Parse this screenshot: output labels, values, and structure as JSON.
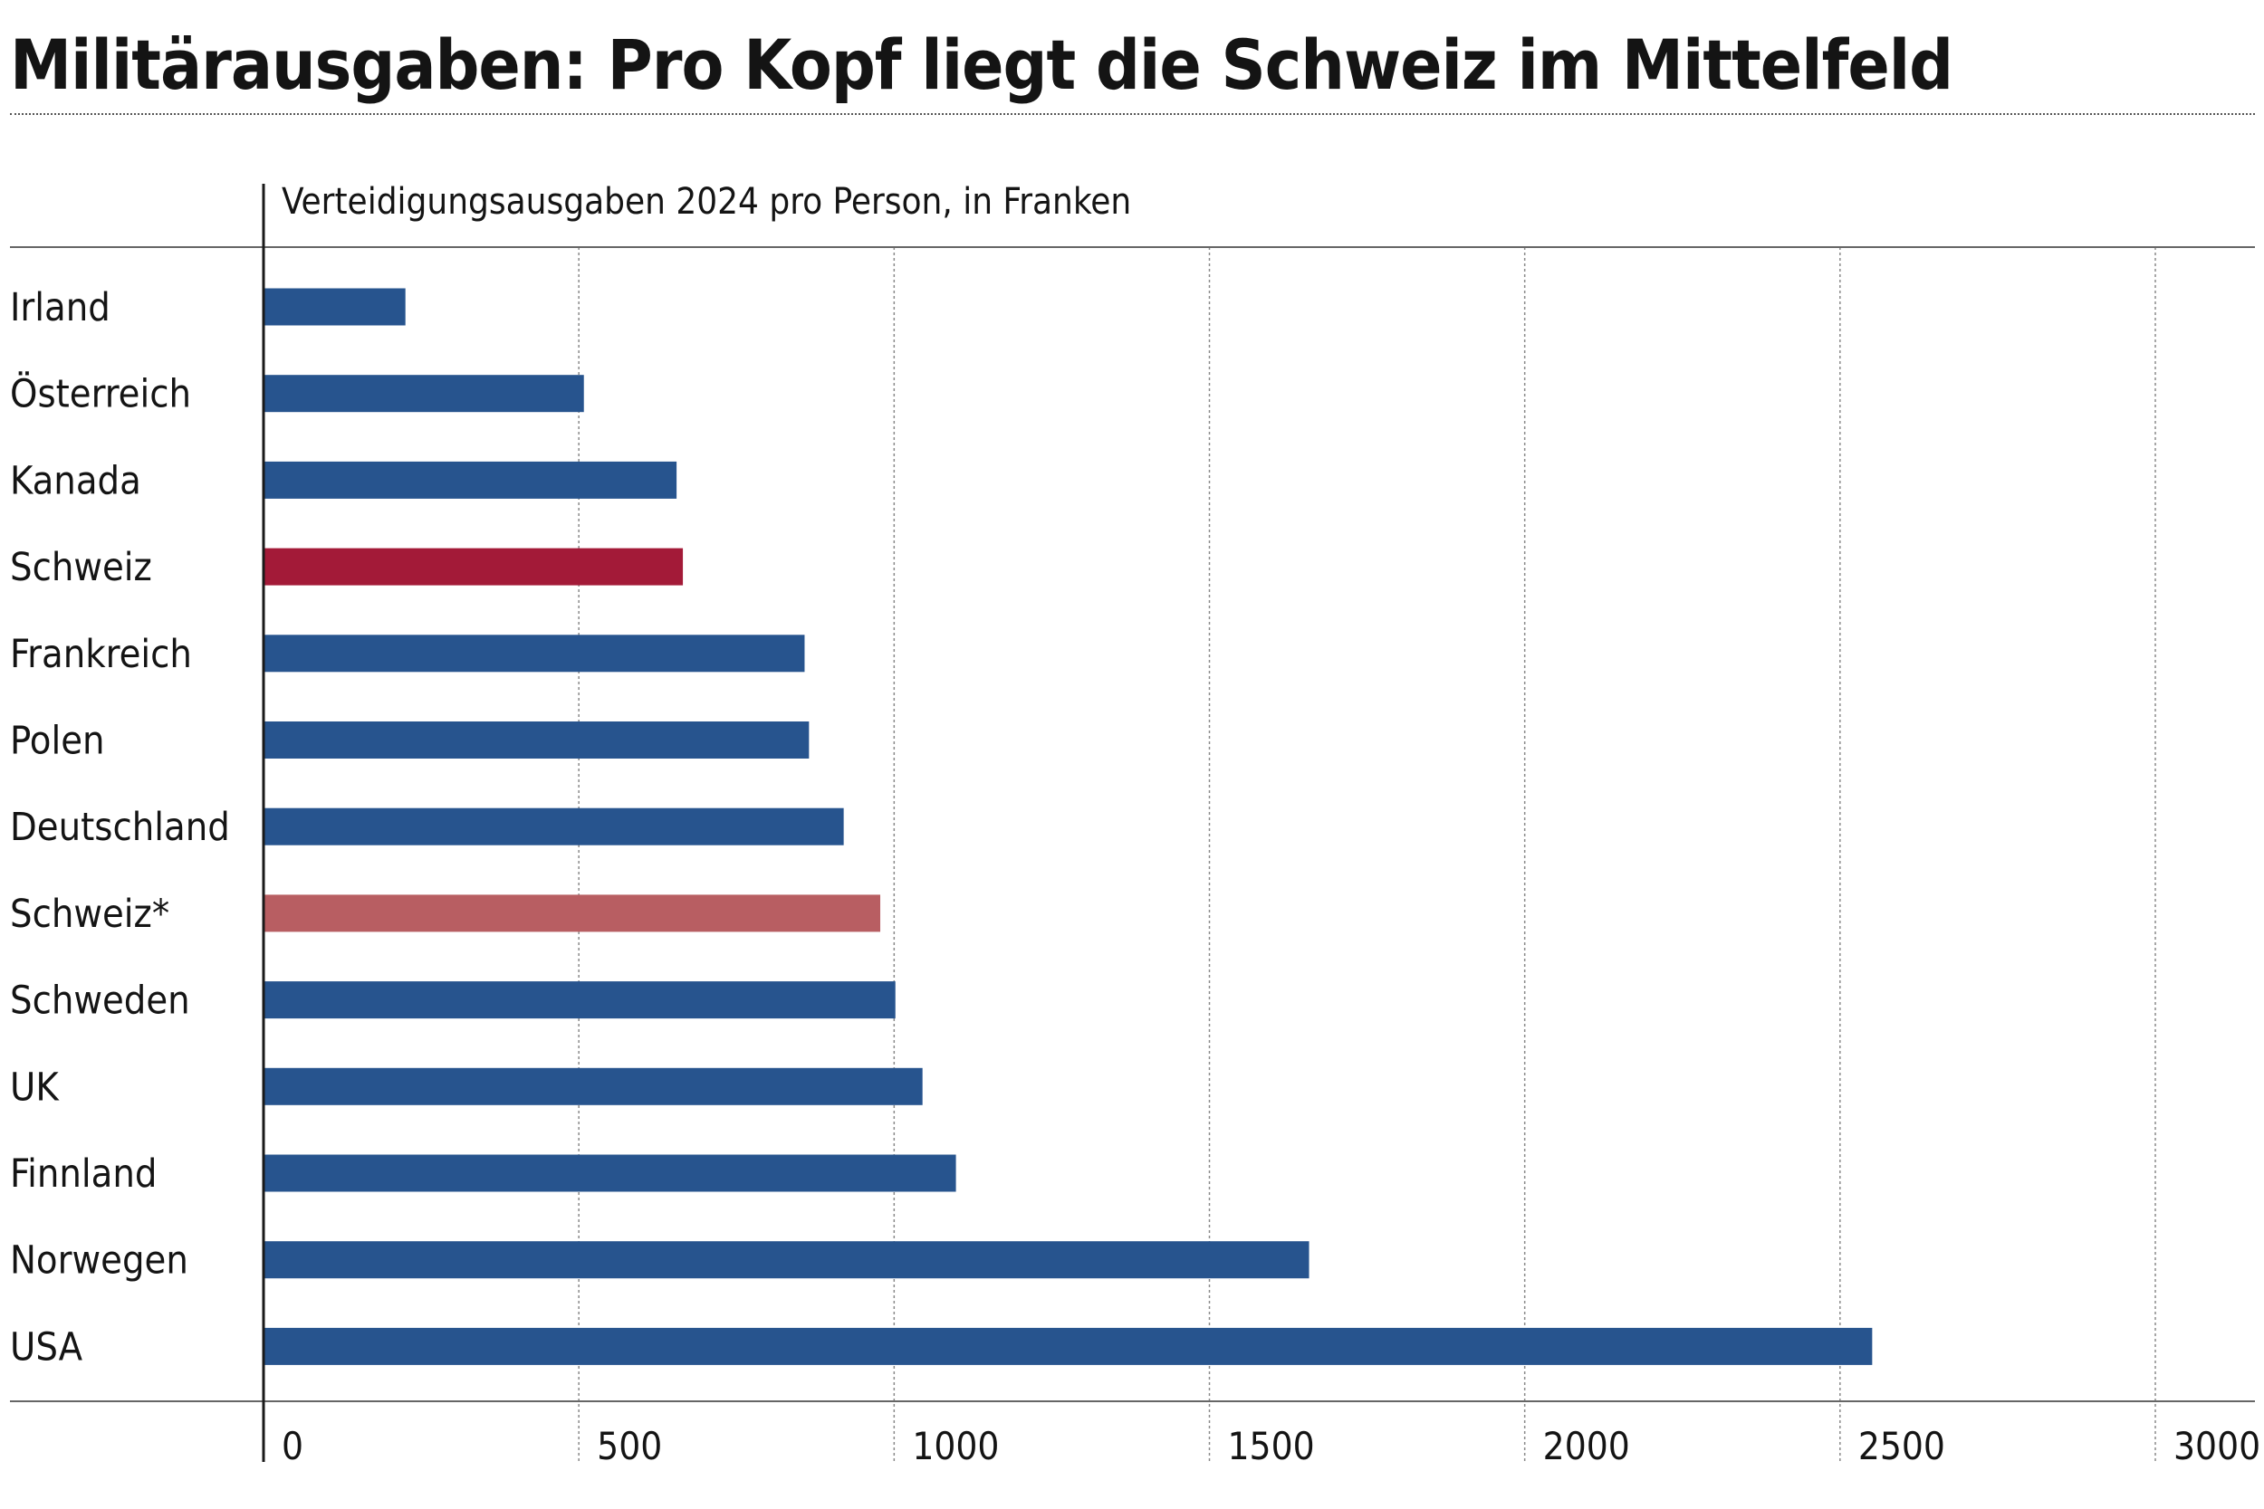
{
  "title": "Militärausgaben: Pro Kopf liegt die Schweiz im Mittelfeld",
  "colors": {
    "default_bar": "#27548e",
    "highlight_bar": "#a31a38",
    "highlight_bar_light": "#b85e62"
  },
  "chart_data": {
    "type": "bar",
    "orientation": "horizontal",
    "subtitle": "Verteidigungsausgaben 2024 pro Person, in Franken",
    "xlim": [
      0,
      3000
    ],
    "ticks": [
      0,
      500,
      1000,
      1500,
      2000,
      2500,
      3000
    ],
    "tick_labels": [
      "0",
      "500",
      "1000",
      "1500",
      "2000",
      "2500",
      "3000"
    ],
    "grid": "vertical-dotted",
    "categories": [
      "Irland",
      "Österreich",
      "Kanada",
      "Schweiz",
      "Frankreich",
      "Polen",
      "Deutschland",
      "Schweiz*",
      "Schweden",
      "UK",
      "Finnland",
      "Norwegen",
      "USA"
    ],
    "values": [
      225,
      508,
      655,
      665,
      858,
      865,
      920,
      978,
      1002,
      1045,
      1098,
      1658,
      2551
    ],
    "bar_colors": [
      "default_bar",
      "default_bar",
      "default_bar",
      "highlight_bar",
      "default_bar",
      "default_bar",
      "default_bar",
      "highlight_bar_light",
      "default_bar",
      "default_bar",
      "default_bar",
      "default_bar",
      "default_bar"
    ]
  }
}
